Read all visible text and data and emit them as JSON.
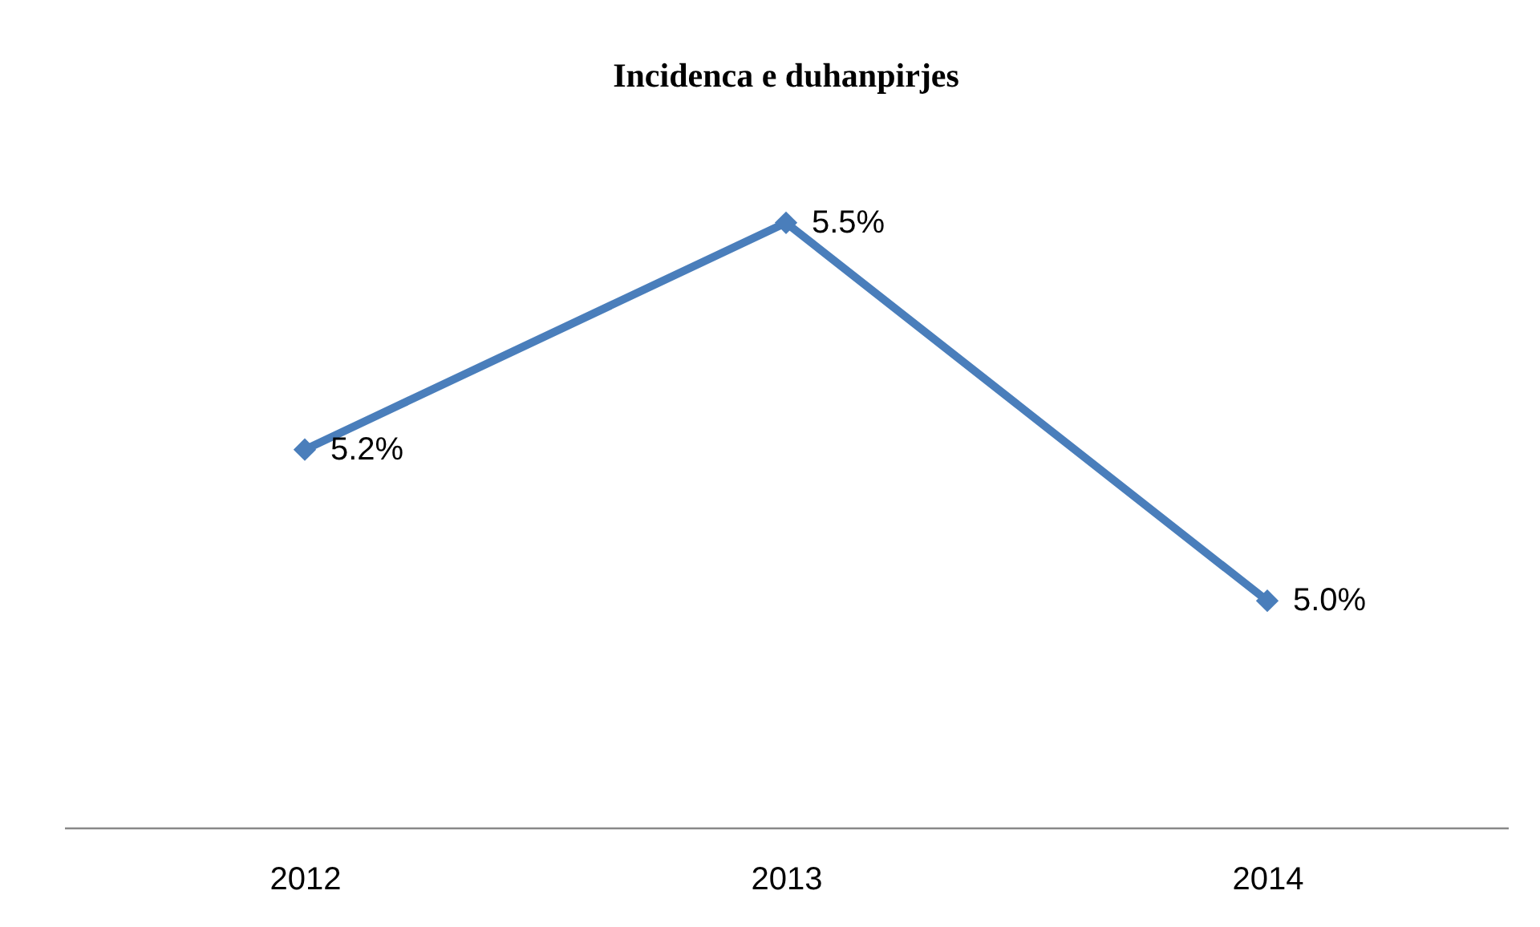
{
  "chart_data": {
    "type": "line",
    "title": "Incidenca e duhanpirjes",
    "relative": false,
    "categories": [
      "2012",
      "2013",
      "2014"
    ],
    "series": [
      {
        "color": "#4a7ebb",
        "values": [
          5.2,
          5.5,
          5.0
        ],
        "value_labels": [
          "5.2%",
          "5.5%",
          "5.0%"
        ]
      }
    ],
    "marker": "diamond",
    "line_style": "solid"
  }
}
